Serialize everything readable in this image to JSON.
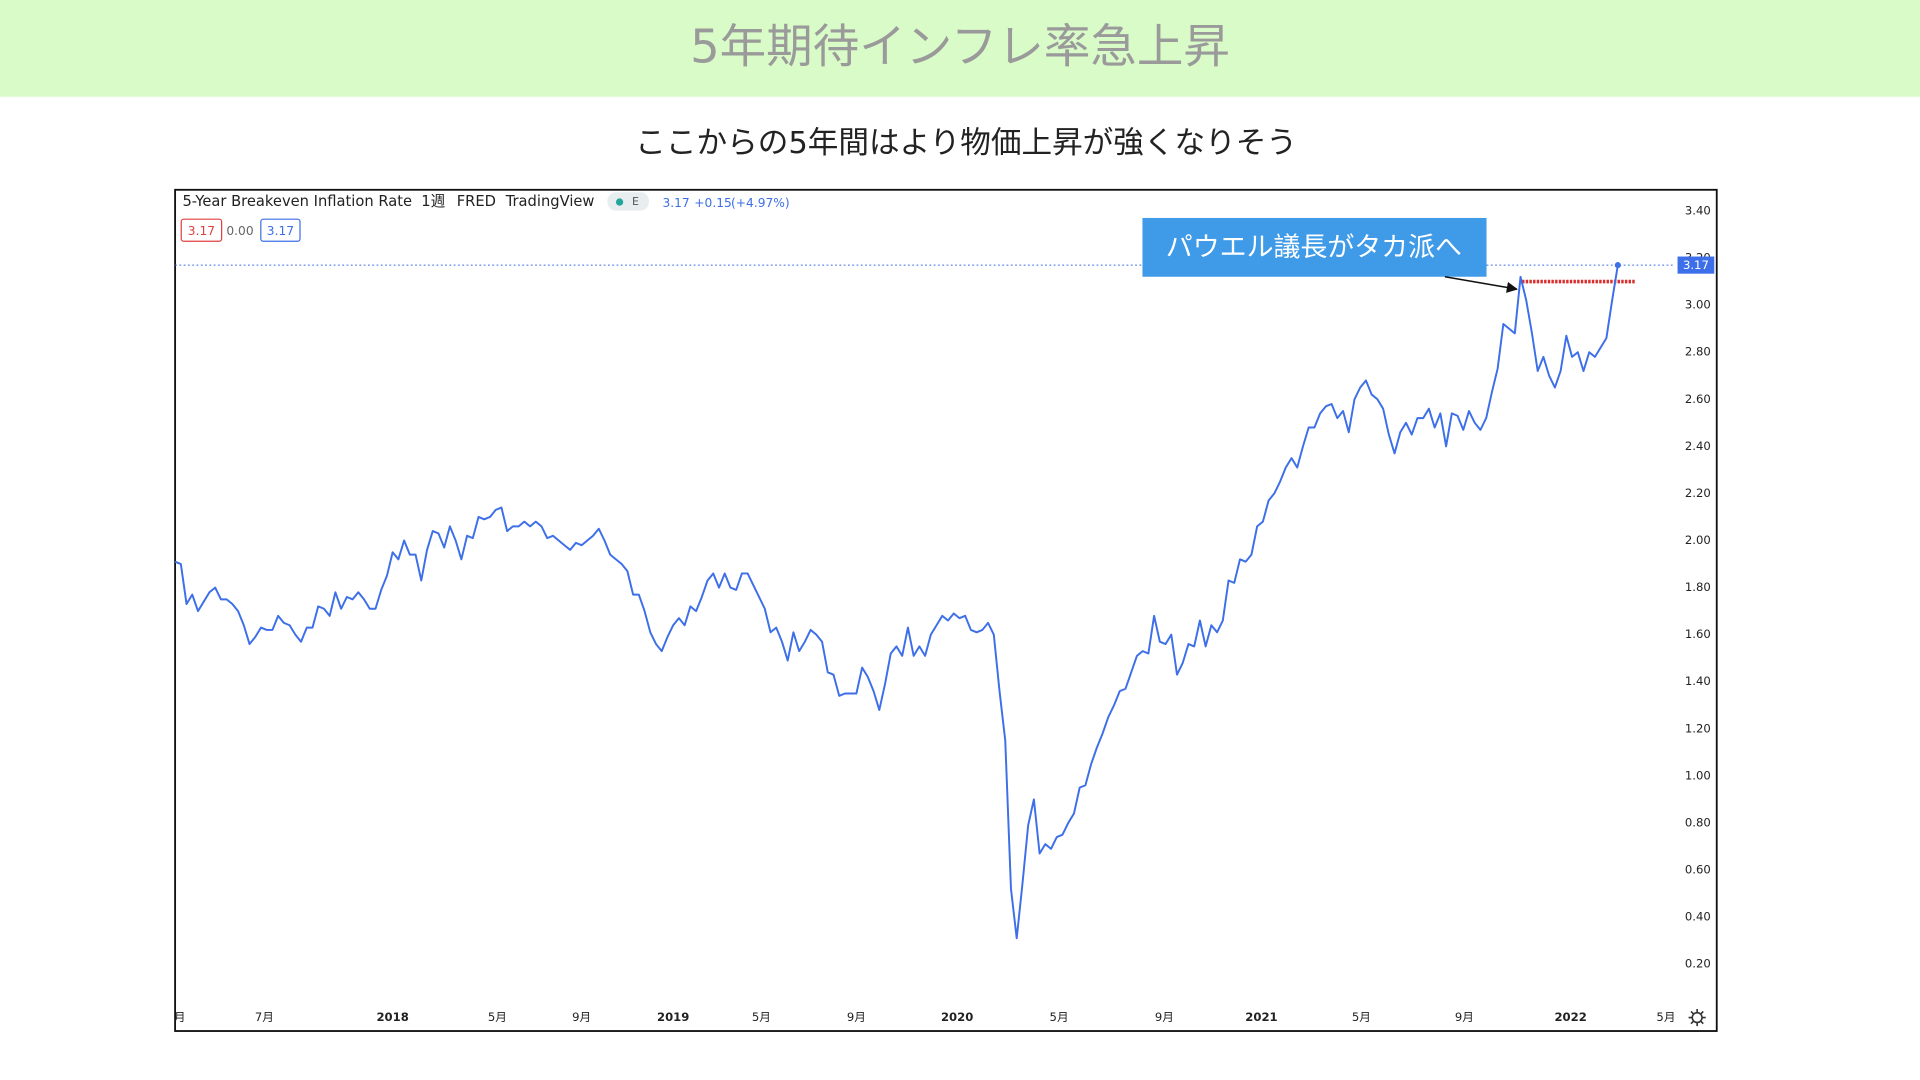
{
  "header": {
    "title": "5年期待インフレ率急上昇"
  },
  "subtitle": "ここからの5年間はより物価上昇が強くなりそう",
  "chart_data": {
    "type": "line",
    "interval": "1週",
    "source": "FRED",
    "platform": "TradingView",
    "indicator": "E",
    "last_value": 3.17,
    "change": {
      "value": 0.15,
      "label": "+0.15"
    },
    "change_pct": {
      "value": 4.97,
      "label": "(+4.97%)"
    },
    "legend_values": [
      3.17,
      {
        "value": 0,
        "label": "0.00"
      },
      3.17
    ],
    "annotation": "パウエル議長がタカ派へ",
    "highlight_level": 3.1,
    "series": [
      {
        "name": "5-Year Breakeven Inflation Rate",
        "color": "#3d6fe8",
        "values": [
          1.91,
          1.9,
          1.73,
          1.77,
          1.7,
          1.74,
          1.78,
          1.8,
          1.75,
          1.75,
          1.73,
          1.7,
          1.64,
          1.56,
          1.59,
          1.63,
          1.62,
          1.62,
          1.68,
          1.65,
          1.64,
          1.6,
          1.57,
          1.63,
          1.63,
          1.72,
          1.71,
          1.68,
          1.78,
          1.71,
          1.76,
          1.75,
          1.78,
          1.75,
          1.71,
          1.71,
          1.79,
          1.85,
          1.95,
          1.92,
          2.0,
          1.94,
          1.94,
          1.83,
          1.96,
          2.04,
          2.03,
          1.97,
          2.06,
          2.0,
          1.92,
          2.02,
          2.01,
          2.1,
          2.09,
          2.1,
          2.13,
          2.14,
          2.04,
          2.06,
          2.06,
          2.08,
          2.06,
          2.08,
          2.06,
          2.01,
          2.02,
          2.0,
          1.98,
          1.96,
          1.99,
          1.98,
          2.0,
          2.02,
          2.05,
          2.0,
          1.94,
          1.92,
          1.9,
          1.87,
          1.77,
          1.77,
          1.7,
          1.61,
          1.56,
          1.53,
          1.59,
          1.64,
          1.67,
          1.64,
          1.72,
          1.7,
          1.76,
          1.83,
          1.86,
          1.8,
          1.86,
          1.8,
          1.79,
          1.86,
          1.86,
          1.81,
          1.76,
          1.71,
          1.61,
          1.63,
          1.57,
          1.49,
          1.61,
          1.53,
          1.57,
          1.62,
          1.6,
          1.57,
          1.44,
          1.43,
          1.34,
          1.35,
          1.35,
          1.35,
          1.46,
          1.42,
          1.36,
          1.28,
          1.39,
          1.52,
          1.55,
          1.51,
          1.63,
          1.51,
          1.55,
          1.51,
          1.6,
          1.64,
          1.68,
          1.66,
          1.69,
          1.67,
          1.68,
          1.62,
          1.61,
          1.62,
          1.65,
          1.6,
          1.36,
          1.15,
          0.52,
          0.31,
          0.54,
          0.79,
          0.9,
          0.67,
          0.71,
          0.69,
          0.74,
          0.75,
          0.8,
          0.84,
          0.95,
          0.96,
          1.05,
          1.12,
          1.18,
          1.25,
          1.3,
          1.36,
          1.37,
          1.44,
          1.51,
          1.53,
          1.52,
          1.68,
          1.57,
          1.56,
          1.6,
          1.43,
          1.48,
          1.56,
          1.55,
          1.66,
          1.55,
          1.64,
          1.61,
          1.66,
          1.83,
          1.82,
          1.92,
          1.91,
          1.94,
          2.06,
          2.08,
          2.17,
          2.2,
          2.25,
          2.31,
          2.35,
          2.31,
          2.4,
          2.48,
          2.48,
          2.54,
          2.57,
          2.58,
          2.52,
          2.55,
          2.46,
          2.6,
          2.65,
          2.68,
          2.62,
          2.6,
          2.56,
          2.45,
          2.37,
          2.46,
          2.5,
          2.45,
          2.52,
          2.52,
          2.56,
          2.48,
          2.54,
          2.4,
          2.54,
          2.53,
          2.47,
          2.55,
          2.5,
          2.47,
          2.52,
          2.63,
          2.73,
          2.92,
          2.9,
          2.88,
          3.12,
          3.02,
          2.88,
          2.72,
          2.78,
          2.7,
          2.65,
          2.72,
          2.87,
          2.78,
          2.8,
          2.72,
          2.8,
          2.78,
          2.82,
          2.86,
          3.02,
          3.17
        ]
      }
    ],
    "xlim": [
      0,
      262
    ],
    "xticks": [
      {
        "value": 0.8,
        "label": "月"
      },
      {
        "value": 15.6,
        "label": "7月"
      },
      {
        "value": 38,
        "label": "2018"
      },
      {
        "value": 56.3,
        "label": "5月"
      },
      {
        "value": 71,
        "label": "9月"
      },
      {
        "value": 87,
        "label": "2019"
      },
      {
        "value": 102.4,
        "label": "5月"
      },
      {
        "value": 119,
        "label": "9月"
      },
      {
        "value": 136.6,
        "label": "2020"
      },
      {
        "value": 154.4,
        "label": "5月"
      },
      {
        "value": 172.8,
        "label": "9月"
      },
      {
        "value": 189.75,
        "label": "2021"
      },
      {
        "value": 207.2,
        "label": "5月"
      },
      {
        "value": 225.2,
        "label": "9月"
      },
      {
        "value": 243.75,
        "label": "2022"
      },
      {
        "value": 260.4,
        "label": "5月"
      }
    ],
    "ylim": [
      0.02,
      3.49
    ],
    "yticks": [
      {
        "value": 0.2,
        "label": "0.20"
      },
      {
        "value": 0.4,
        "label": "0.40"
      },
      {
        "value": 0.6,
        "label": "0.60"
      },
      {
        "value": 0.8,
        "label": "0.80"
      },
      {
        "value": 1,
        "label": "1.00"
      },
      {
        "value": 1.2,
        "label": "1.20"
      },
      {
        "value": 1.4,
        "label": "1.40"
      },
      {
        "value": 1.6,
        "label": "1.60"
      },
      {
        "value": 1.8,
        "label": "1.80"
      },
      {
        "value": 2,
        "label": "2.00"
      },
      {
        "value": 2.2,
        "label": "2.20"
      },
      {
        "value": 2.4,
        "label": "2.40"
      },
      {
        "value": 2.6,
        "label": "2.60"
      },
      {
        "value": 2.8,
        "label": "2.80"
      },
      {
        "value": 3,
        "label": "3.00"
      },
      {
        "value": 3.2,
        "label": "3.20"
      },
      {
        "value": 3.4,
        "label": "3.40"
      }
    ],
    "grid": false
  }
}
